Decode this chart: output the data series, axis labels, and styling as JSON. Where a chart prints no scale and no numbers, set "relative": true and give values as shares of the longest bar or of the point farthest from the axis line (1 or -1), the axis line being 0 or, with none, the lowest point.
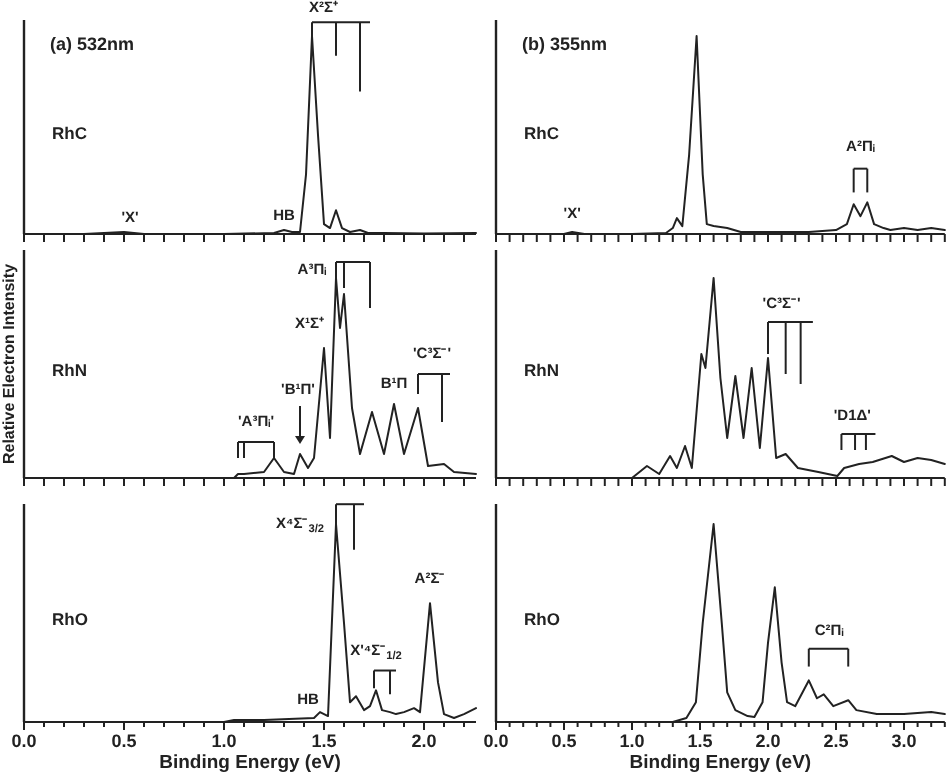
{
  "chart_data": [
    {
      "type": "line",
      "title": "(a) 532nm",
      "relative": true,
      "tick_labels": false,
      "xlim": [
        0,
        2.26
      ],
      "xticks": [
        0,
        0.1,
        0.2,
        0.3,
        0.4,
        0.5,
        0.6,
        0.7,
        0.8,
        0.9,
        1,
        1.1,
        1.2,
        1.3,
        1.4,
        1.5,
        1.6,
        1.7,
        1.8,
        1.9,
        2,
        2.1,
        2.2
      ],
      "series": [
        {
          "color": "#222222",
          "x": [
            0,
            0.3,
            0.5,
            0.6,
            1.0,
            1.25,
            1.3,
            1.34,
            1.38,
            1.41,
            1.44,
            1.47,
            1.5,
            1.53,
            1.56,
            1.59,
            1.63,
            1.68,
            1.72,
            1.8,
            2.0,
            2.26
          ],
          "values": [
            0,
            0,
            0.01,
            0,
            0,
            0.005,
            0.02,
            0.01,
            0.01,
            0.3,
            1.0,
            0.5,
            0.05,
            0.03,
            0.12,
            0.03,
            0.01,
            0.02,
            0.005,
            0.005,
            0.003,
            0.005
          ]
        }
      ],
      "annotations": [
        "RhC",
        "'X'",
        "HB",
        "X²Σ⁺"
      ]
    },
    {
      "type": "line",
      "title": "(b) 355nm",
      "relative": true,
      "tick_labels": false,
      "xlim": [
        0,
        3.3
      ],
      "xticks": [
        0,
        0.1,
        0.2,
        0.3,
        0.4,
        0.5,
        0.6,
        0.7,
        0.8,
        0.9,
        1,
        1.1,
        1.2,
        1.3,
        1.4,
        1.5,
        1.6,
        1.7,
        1.8,
        1.9,
        2,
        2.1,
        2.2,
        2.3,
        2.4,
        2.5,
        2.6,
        2.7,
        2.8,
        2.9,
        3,
        3.1,
        3.2,
        3.3
      ],
      "series": [
        {
          "color": "#222222",
          "x": [
            0,
            0.5,
            0.56,
            0.65,
            1.0,
            1.25,
            1.3,
            1.33,
            1.37,
            1.42,
            1.475,
            1.52,
            1.55,
            1.6,
            1.7,
            1.8,
            2.0,
            2.3,
            2.5,
            2.58,
            2.63,
            2.68,
            2.73,
            2.78,
            2.85,
            2.9,
            3.0,
            3.1,
            3.2,
            3.3
          ],
          "values": [
            0,
            0,
            0.01,
            0,
            0,
            0.005,
            0.03,
            0.08,
            0.04,
            0.4,
            1.0,
            0.3,
            0.05,
            0.04,
            0.03,
            0.01,
            0.01,
            0.01,
            0.02,
            0.05,
            0.15,
            0.09,
            0.16,
            0.05,
            0.03,
            0.02,
            0.03,
            0.02,
            0.03,
            0.02
          ]
        }
      ],
      "annotations": [
        "RhC",
        "'X'",
        "A²Πᵢ"
      ]
    },
    {
      "type": "line",
      "ylabel": "Relative Electron Intensity",
      "relative": true,
      "tick_labels": false,
      "xlim": [
        0,
        2.26
      ],
      "xticks": [
        0,
        0.1,
        0.2,
        0.3,
        0.4,
        0.5,
        0.6,
        0.7,
        0.8,
        0.9,
        1,
        1.1,
        1.2,
        1.3,
        1.4,
        1.5,
        1.6,
        1.7,
        1.8,
        1.9,
        2,
        2.1,
        2.2
      ],
      "series": [
        {
          "color": "#222222",
          "x": [
            0,
            1.05,
            1.07,
            1.1,
            1.2,
            1.25,
            1.3,
            1.35,
            1.38,
            1.42,
            1.45,
            1.5,
            1.53,
            1.56,
            1.58,
            1.6,
            1.64,
            1.68,
            1.74,
            1.8,
            1.85,
            1.9,
            1.97,
            2.02,
            2.1,
            2.15,
            2.26
          ],
          "values": [
            0,
            0,
            0.02,
            0.02,
            0.03,
            0.1,
            0.03,
            0.02,
            0.12,
            0.05,
            0.1,
            0.65,
            0.2,
            1.0,
            0.75,
            0.92,
            0.35,
            0.12,
            0.33,
            0.12,
            0.37,
            0.12,
            0.35,
            0.06,
            0.07,
            0.03,
            0.02
          ]
        }
      ],
      "annotations": [
        "RhN",
        "'A³Πᵢ'",
        "'B¹Π'",
        "X¹Σ⁺",
        "A³Πᵢ",
        "B¹Π",
        "'C³Σ⁻'"
      ]
    },
    {
      "type": "line",
      "relative": true,
      "tick_labels": false,
      "xlim": [
        0,
        3.3
      ],
      "xticks": [
        0,
        0.1,
        0.2,
        0.3,
        0.4,
        0.5,
        0.6,
        0.7,
        0.8,
        0.9,
        1,
        1.1,
        1.2,
        1.3,
        1.4,
        1.5,
        1.6,
        1.7,
        1.8,
        1.9,
        2,
        2.1,
        2.2,
        2.3,
        2.4,
        2.5,
        2.6,
        2.7,
        2.8,
        2.9,
        3,
        3.1,
        3.2,
        3.3
      ],
      "series": [
        {
          "color": "#222222",
          "x": [
            0,
            1.0,
            1.11,
            1.2,
            1.28,
            1.33,
            1.39,
            1.44,
            1.51,
            1.54,
            1.6,
            1.65,
            1.7,
            1.76,
            1.82,
            1.88,
            1.94,
            2.0,
            2.06,
            2.13,
            2.22,
            2.37,
            2.51,
            2.56,
            2.67,
            2.77,
            2.91,
            3.0,
            3.1,
            3.2,
            3.3
          ],
          "values": [
            0,
            0,
            0.06,
            0.02,
            0.11,
            0.05,
            0.16,
            0.05,
            0.62,
            0.55,
            1.0,
            0.5,
            0.2,
            0.51,
            0.2,
            0.55,
            0.15,
            0.6,
            0.1,
            0.12,
            0.05,
            0.03,
            0.01,
            0.05,
            0.07,
            0.08,
            0.11,
            0.08,
            0.1,
            0.09,
            0.07
          ]
        }
      ],
      "annotations": [
        "RhN",
        "'C³Σ⁻'",
        "'D1Δ'"
      ]
    },
    {
      "type": "line",
      "xlabel": "Binding Energy (eV)",
      "relative": true,
      "xlim": [
        0,
        2.26
      ],
      "xticks": [
        {
          "value": 0,
          "label": "0.0"
        },
        {
          "value": 0.1,
          "label": null
        },
        {
          "value": 0.2,
          "label": null
        },
        {
          "value": 0.3,
          "label": null
        },
        {
          "value": 0.4,
          "label": null
        },
        {
          "value": 0.5,
          "label": "0.5"
        },
        {
          "value": 0.6,
          "label": null
        },
        {
          "value": 0.7,
          "label": null
        },
        {
          "value": 0.8,
          "label": null
        },
        {
          "value": 0.9,
          "label": null
        },
        {
          "value": 1,
          "label": "1.0"
        },
        {
          "value": 1.1,
          "label": null
        },
        {
          "value": 1.2,
          "label": null
        },
        {
          "value": 1.3,
          "label": null
        },
        {
          "value": 1.4,
          "label": null
        },
        {
          "value": 1.5,
          "label": "1.5"
        },
        {
          "value": 1.6,
          "label": null
        },
        {
          "value": 1.7,
          "label": null
        },
        {
          "value": 1.8,
          "label": null
        },
        {
          "value": 1.9,
          "label": null
        },
        {
          "value": 2,
          "label": "2.0"
        },
        {
          "value": 2.1,
          "label": null
        },
        {
          "value": 2.2,
          "label": null
        }
      ],
      "series": [
        {
          "color": "#222222",
          "x": [
            0,
            1.0,
            1.05,
            1.2,
            1.45,
            1.48,
            1.52,
            1.56,
            1.6,
            1.63,
            1.66,
            1.7,
            1.73,
            1.76,
            1.79,
            1.83,
            1.86,
            1.9,
            1.95,
            1.98,
            2.03,
            2.07,
            2.1,
            2.15,
            2.2,
            2.26
          ],
          "values": [
            0,
            0,
            0.01,
            0.01,
            0.02,
            0.05,
            0.03,
            1.0,
            0.5,
            0.1,
            0.13,
            0.06,
            0.08,
            0.16,
            0.06,
            0.05,
            0.04,
            0.05,
            0.07,
            0.05,
            0.6,
            0.2,
            0.04,
            0.02,
            0.04,
            0.07
          ]
        }
      ],
      "annotations": [
        "RhO",
        "X⁴Σ⁻$_{3/2}$",
        "X'⁴Σ⁻$_{1/2}$",
        "A²Σ⁻",
        "HB"
      ]
    },
    {
      "type": "line",
      "xlabel": "Binding Energy (eV)",
      "relative": true,
      "xlim": [
        0,
        3.3
      ],
      "xticks": [
        {
          "value": 0,
          "label": "0.0"
        },
        {
          "value": 0.1,
          "label": null
        },
        {
          "value": 0.2,
          "label": null
        },
        {
          "value": 0.3,
          "label": null
        },
        {
          "value": 0.4,
          "label": null
        },
        {
          "value": 0.5,
          "label": "0.5"
        },
        {
          "value": 0.6,
          "label": null
        },
        {
          "value": 0.7,
          "label": null
        },
        {
          "value": 0.8,
          "label": null
        },
        {
          "value": 0.9,
          "label": null
        },
        {
          "value": 1,
          "label": "1.0"
        },
        {
          "value": 1.1,
          "label": null
        },
        {
          "value": 1.2,
          "label": null
        },
        {
          "value": 1.3,
          "label": null
        },
        {
          "value": 1.4,
          "label": null
        },
        {
          "value": 1.5,
          "label": "1.5"
        },
        {
          "value": 1.6,
          "label": null
        },
        {
          "value": 1.7,
          "label": null
        },
        {
          "value": 1.8,
          "label": null
        },
        {
          "value": 1.9,
          "label": null
        },
        {
          "value": 2,
          "label": "2.0"
        },
        {
          "value": 2.1,
          "label": null
        },
        {
          "value": 2.2,
          "label": null
        },
        {
          "value": 2.3,
          "label": null
        },
        {
          "value": 2.4,
          "label": null
        },
        {
          "value": 2.5,
          "label": "2.5"
        },
        {
          "value": 2.6,
          "label": null
        },
        {
          "value": 2.7,
          "label": null
        },
        {
          "value": 2.8,
          "label": null
        },
        {
          "value": 2.9,
          "label": null
        },
        {
          "value": 3,
          "label": "3.0"
        },
        {
          "value": 3.1,
          "label": null
        },
        {
          "value": 3.2,
          "label": null
        },
        {
          "value": 3.3,
          "label": null
        }
      ],
      "series": [
        {
          "color": "#222222",
          "x": [
            0,
            1.3,
            1.4,
            1.47,
            1.52,
            1.6,
            1.66,
            1.7,
            1.76,
            1.85,
            1.9,
            1.96,
            2.0,
            2.05,
            2.1,
            2.14,
            2.2,
            2.3,
            2.36,
            2.41,
            2.48,
            2.59,
            2.65,
            2.8,
            3.0,
            3.2,
            3.3
          ],
          "values": [
            0,
            0,
            0.02,
            0.1,
            0.5,
            1.0,
            0.5,
            0.15,
            0.06,
            0.03,
            0.025,
            0.1,
            0.4,
            0.68,
            0.3,
            0.1,
            0.08,
            0.21,
            0.12,
            0.14,
            0.08,
            0.11,
            0.06,
            0.04,
            0.04,
            0.05,
            0.04
          ]
        }
      ],
      "annotations": [
        "RhO",
        "C²Πᵢ"
      ]
    }
  ]
}
